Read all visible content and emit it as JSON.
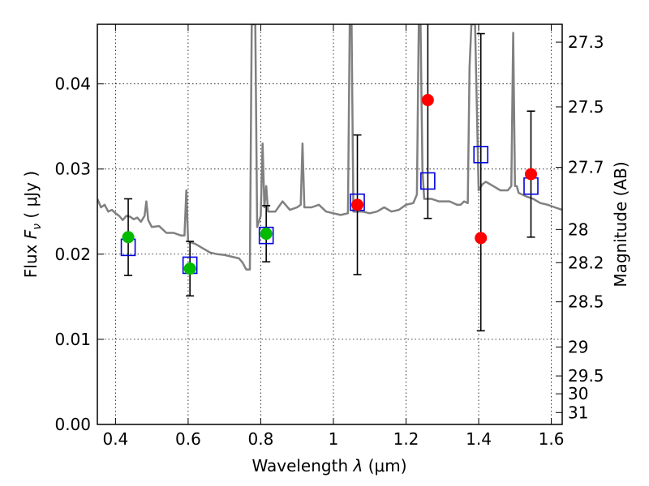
{
  "chart_data": {
    "type": "scatter",
    "xlabel_prefix": "Wavelength",
    "xlabel_symbol": "λ",
    "xlabel_unit": "(μm)",
    "ylabel_prefix": "Flux",
    "ylabel_symbol": "F",
    "ylabel_subscript": "ν",
    "ylabel_unit": "( μJy )",
    "y2label": "Magnitude (AB)",
    "xlim": [
      0.35,
      1.63
    ],
    "ylim": [
      0.0,
      0.047
    ],
    "grid": true,
    "x_ticks": [
      0.4,
      0.6,
      0.8,
      1.0,
      1.2,
      1.4,
      1.6
    ],
    "x_tick_labels": [
      "0.4",
      "0.6",
      "0.8",
      "1",
      "1.2",
      "1.4",
      "1.6"
    ],
    "y_ticks": [
      0.0,
      0.01,
      0.02,
      0.03,
      0.04
    ],
    "y_tick_labels": [
      "0.00",
      "0.01",
      "0.02",
      "0.03",
      "0.04"
    ],
    "y2_ticks": [
      {
        "flux": 0.0449,
        "label": "27.3"
      },
      {
        "flux": 0.0373,
        "label": "27.5"
      },
      {
        "flux": 0.0302,
        "label": "27.7"
      },
      {
        "flux": 0.0229,
        "label": "28"
      },
      {
        "flux": 0.019,
        "label": "28.2"
      },
      {
        "flux": 0.0144,
        "label": "28.5"
      },
      {
        "flux": 0.0091,
        "label": "29"
      },
      {
        "flux": 0.0057,
        "label": "29.5"
      },
      {
        "flux": 0.0036,
        "label": "30"
      },
      {
        "flux": 0.0014,
        "label": "31"
      }
    ],
    "colors": {
      "template": "#808080",
      "ground_points": "#00bb00",
      "space_points": "#ff0000",
      "model_boxes": "#0000dd",
      "error_bars": "#000000"
    },
    "series": [
      {
        "kind": "template_spectrum",
        "x": [
          0.35,
          0.36,
          0.37,
          0.38,
          0.39,
          0.4,
          0.41,
          0.42,
          0.43,
          0.44,
          0.45,
          0.46,
          0.47,
          0.48,
          0.485,
          0.49,
          0.5,
          0.52,
          0.54,
          0.56,
          0.58,
          0.59,
          0.595,
          0.6,
          0.62,
          0.64,
          0.66,
          0.68,
          0.7,
          0.72,
          0.74,
          0.75,
          0.76,
          0.77,
          0.775,
          0.78,
          0.785,
          0.79,
          0.8,
          0.805,
          0.81,
          0.815,
          0.82,
          0.84,
          0.86,
          0.88,
          0.9,
          0.91,
          0.915,
          0.92,
          0.94,
          0.96,
          0.98,
          1.0,
          1.02,
          1.04,
          1.045,
          1.05,
          1.055,
          1.06,
          1.08,
          1.1,
          1.12,
          1.14,
          1.16,
          1.18,
          1.2,
          1.22,
          1.23,
          1.235,
          1.24,
          1.245,
          1.25,
          1.27,
          1.29,
          1.3,
          1.32,
          1.34,
          1.35,
          1.36,
          1.37,
          1.375,
          1.38,
          1.39,
          1.4,
          1.41,
          1.42,
          1.44,
          1.46,
          1.48,
          1.49,
          1.495,
          1.5,
          1.505,
          1.51,
          1.53,
          1.55,
          1.57,
          1.59,
          1.61,
          1.63
        ],
        "values": [
          0.0265,
          0.0255,
          0.0258,
          0.025,
          0.0252,
          0.0248,
          0.0245,
          0.024,
          0.0245,
          0.0244,
          0.0241,
          0.0243,
          0.0238,
          0.0245,
          0.0262,
          0.024,
          0.0232,
          0.0233,
          0.0225,
          0.0225,
          0.0222,
          0.0222,
          0.0275,
          0.0215,
          0.0212,
          0.0207,
          0.0202,
          0.02,
          0.0199,
          0.0197,
          0.0195,
          0.019,
          0.0182,
          0.0182,
          0.047,
          0.047,
          0.047,
          0.0232,
          0.0245,
          0.033,
          0.0255,
          0.028,
          0.025,
          0.025,
          0.0262,
          0.0252,
          0.0255,
          0.0258,
          0.033,
          0.0255,
          0.0255,
          0.0258,
          0.025,
          0.0248,
          0.0246,
          0.0248,
          0.047,
          0.047,
          0.025,
          0.025,
          0.025,
          0.0248,
          0.025,
          0.0255,
          0.025,
          0.0252,
          0.0258,
          0.026,
          0.027,
          0.047,
          0.047,
          0.03,
          0.0265,
          0.0265,
          0.0262,
          0.0262,
          0.0262,
          0.0258,
          0.0258,
          0.0262,
          0.026,
          0.042,
          0.047,
          0.047,
          0.0275,
          0.0282,
          0.0285,
          0.028,
          0.0275,
          0.0275,
          0.028,
          0.046,
          0.028,
          0.028,
          0.0272,
          0.0268,
          0.0265,
          0.026,
          0.0258,
          0.0255,
          0.0252
        ]
      },
      {
        "kind": "ground_photometry",
        "x": [
          0.435,
          0.605,
          0.815
        ],
        "values": [
          0.022,
          0.0183,
          0.0224
        ],
        "err_lo": [
          0.0045,
          0.0032,
          0.0033
        ],
        "err_hi": [
          0.0045,
          0.0032,
          0.0033
        ]
      },
      {
        "kind": "space_photometry",
        "x": [
          1.066,
          1.26,
          1.406,
          1.544
        ],
        "values": [
          0.0258,
          0.0381,
          0.0219,
          0.0294
        ],
        "err_lo": [
          0.0082,
          0.0139,
          0.0109,
          0.0074
        ],
        "err_hi": [
          0.0082,
          0.0139,
          0.024,
          0.0074
        ]
      },
      {
        "kind": "model_photometry",
        "x": [
          0.435,
          0.605,
          0.815,
          1.066,
          1.26,
          1.406,
          1.544
        ],
        "values": [
          0.0208,
          0.0187,
          0.0222,
          0.0261,
          0.0286,
          0.0317,
          0.028
        ]
      }
    ]
  }
}
